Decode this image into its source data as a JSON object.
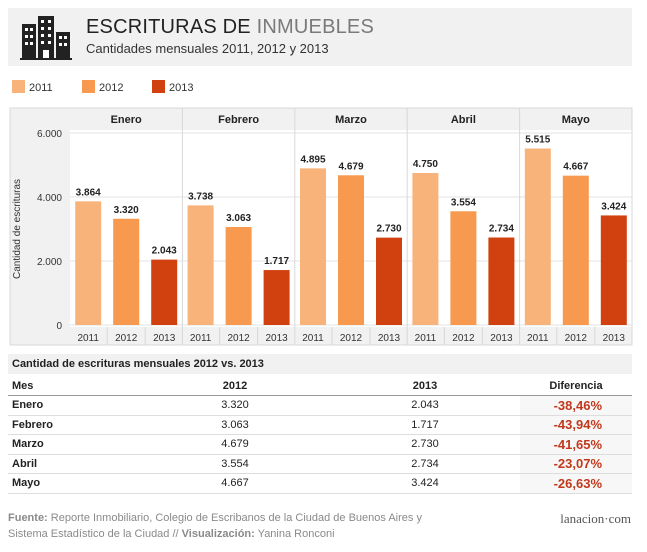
{
  "header": {
    "title_main": "ESCRITURAS DE",
    "title_highlight": "INMUEBLES",
    "subtitle": "Cantidades mensuales 2011, 2012 y 2013"
  },
  "legend": [
    {
      "label": "2011",
      "color": "#f8b37b"
    },
    {
      "label": "2012",
      "color": "#f79a4f"
    },
    {
      "label": "2013",
      "color": "#d0410f"
    }
  ],
  "chart_data": {
    "type": "bar",
    "categories": [
      "Enero",
      "Febrero",
      "Marzo",
      "Abril",
      "Mayo"
    ],
    "series": [
      {
        "name": "2011",
        "values": [
          3864,
          3738,
          4895,
          4750,
          5515
        ],
        "labels": [
          "3.864",
          "3.738",
          "4.895",
          "4.750",
          "5.515"
        ]
      },
      {
        "name": "2012",
        "values": [
          3320,
          3063,
          4679,
          3554,
          4667
        ],
        "labels": [
          "3.320",
          "3.063",
          "4.679",
          "3.554",
          "4.667"
        ]
      },
      {
        "name": "2013",
        "values": [
          2043,
          1717,
          2730,
          2734,
          3424
        ],
        "labels": [
          "2.043",
          "1.717",
          "2.730",
          "2.734",
          "3.424"
        ]
      }
    ],
    "ylabel": "Cantidad de escrituras",
    "ylim": [
      0,
      6000
    ],
    "yticks": [
      0,
      2000,
      4000,
      6000
    ],
    "ytick_labels": [
      "0",
      "2.000",
      "4.000",
      "6.000"
    ],
    "colors": [
      "#f8b37b",
      "#f79a4f",
      "#d0410f"
    ]
  },
  "table": {
    "title": "Cantidad de escrituras mensuales 2012 vs. 2013",
    "headers": [
      "Mes",
      "2012",
      "2013",
      "Diferencia"
    ],
    "rows": [
      {
        "mes": "Enero",
        "v2012": "3.320",
        "v2013": "2.043",
        "dif": "-38,46%"
      },
      {
        "mes": "Febrero",
        "v2012": "3.063",
        "v2013": "1.717",
        "dif": "-43,94%"
      },
      {
        "mes": "Marzo",
        "v2012": "4.679",
        "v2013": "2.730",
        "dif": "-41,65%"
      },
      {
        "mes": "Abril",
        "v2012": "3.554",
        "v2013": "2.734",
        "dif": "-23,07%"
      },
      {
        "mes": "Mayo",
        "v2012": "4.667",
        "v2013": "3.424",
        "dif": "-26,63%"
      }
    ]
  },
  "footer": {
    "fuente_label": "Fuente:",
    "fuente_text": "Reporte Inmobiliario, Colegio de Escribanos de la Ciudad de Buenos Aires y",
    "line2_text": "Sistema Estadístico de la Ciudad //",
    "vis_label": "Visualización:",
    "vis_text": "Yanina Ronconi",
    "brand": "lanacion·com"
  }
}
